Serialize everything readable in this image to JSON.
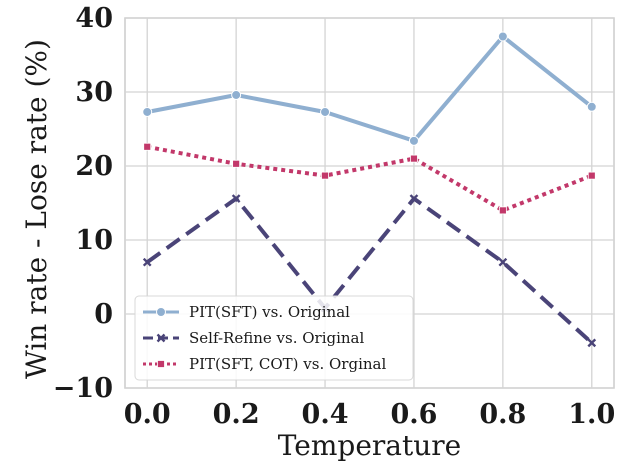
{
  "chart_data": {
    "type": "line",
    "title": "",
    "xlabel": "Temperature",
    "ylabel": "Win rate - Lose rate (%)",
    "x": [
      0.0,
      0.2,
      0.4,
      0.6,
      0.8,
      1.0
    ],
    "x_tick_labels": [
      "0.0",
      "0.2",
      "0.4",
      "0.6",
      "0.8",
      "1.0"
    ],
    "xlim": [
      -0.05,
      1.05
    ],
    "y_ticks": [
      -10,
      0,
      10,
      20,
      30,
      40
    ],
    "y_tick_labels": [
      "−10",
      "0",
      "10",
      "20",
      "30",
      "40"
    ],
    "ylim": [
      -10,
      40
    ],
    "grid": true,
    "legend_position": "bottom-left",
    "series": [
      {
        "name": "PIT(SFT) vs. Original",
        "values": [
          27.3,
          29.6,
          27.3,
          23.4,
          37.5,
          28.0
        ],
        "color": "#8fafd0",
        "line_style": "solid",
        "marker": "circle"
      },
      {
        "name": "Self-Refine vs. Original",
        "values": [
          7.0,
          15.6,
          0.8,
          15.6,
          7.0,
          -3.9
        ],
        "color": "#4a4478",
        "line_style": "dashed",
        "marker": "x"
      },
      {
        "name": "PIT(SFT, COT) vs. Orginal",
        "values": [
          22.6,
          20.3,
          18.7,
          21.0,
          14.0,
          18.7
        ],
        "color": "#c2386a",
        "line_style": "dotted",
        "marker": "square"
      }
    ]
  }
}
